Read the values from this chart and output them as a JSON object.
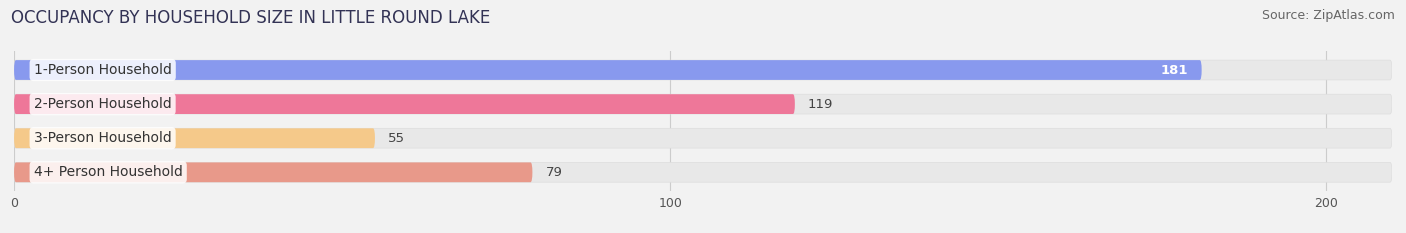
{
  "title": "OCCUPANCY BY HOUSEHOLD SIZE IN LITTLE ROUND LAKE",
  "source": "Source: ZipAtlas.com",
  "categories": [
    "1-Person Household",
    "2-Person Household",
    "3-Person Household",
    "4+ Person Household"
  ],
  "values": [
    181,
    119,
    55,
    79
  ],
  "bar_colors": [
    "#8899ee",
    "#ee7799",
    "#f5c98a",
    "#e8998a"
  ],
  "xlim": [
    0,
    210
  ],
  "xticks": [
    0,
    100,
    200
  ],
  "bg_color": "#f2f2f2",
  "bar_bg_color": "#e8e8e8",
  "title_fontsize": 12,
  "source_fontsize": 9,
  "label_fontsize": 9.5,
  "tick_fontsize": 9,
  "bar_height": 0.58,
  "cat_label_fontsize": 10
}
